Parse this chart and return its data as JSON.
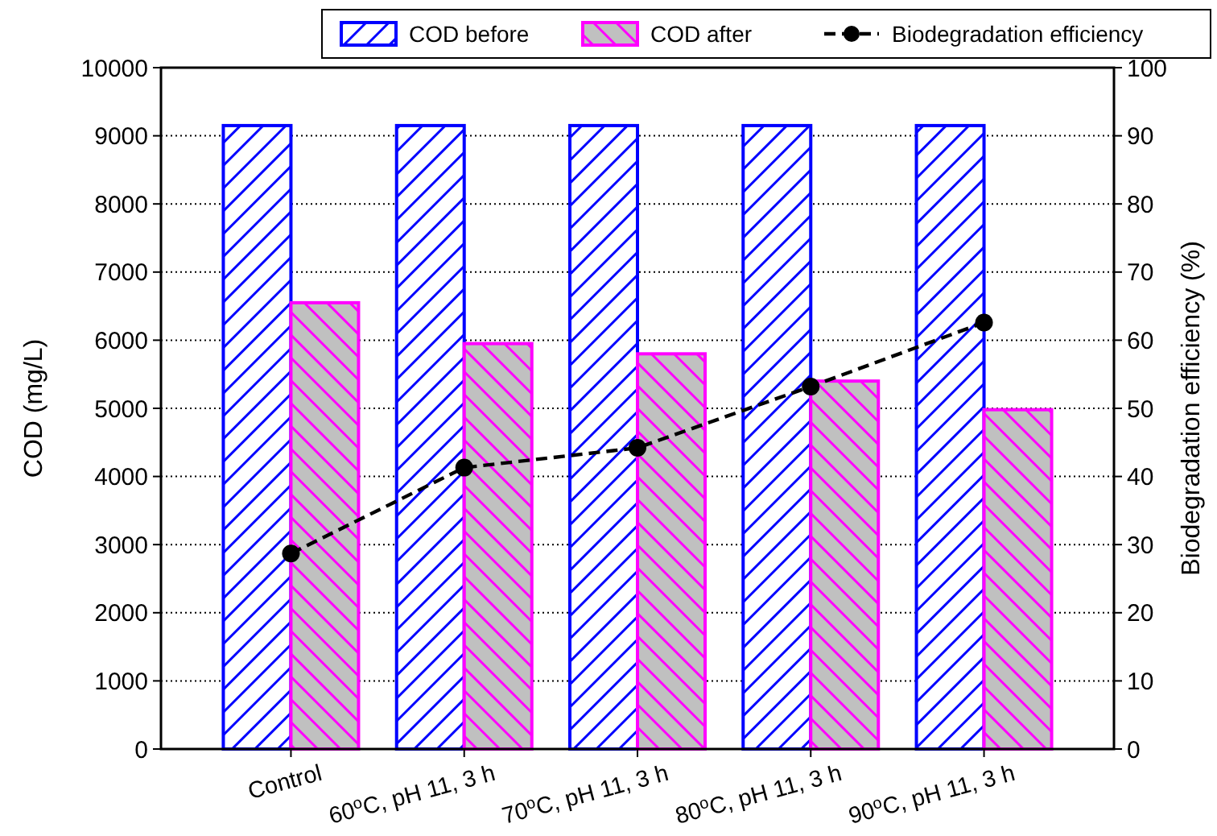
{
  "chart_data": {
    "type": "bar",
    "categories": [
      "Control",
      "60$^{o}$C, pH 11, 3 h",
      "70$^{o}$C, pH 11, 3 h",
      "80$^{o}$C, pH 11, 3 h",
      "90$^{o}$C, pH 11, 3 h"
    ],
    "ylabel": "COD (mg/L)",
    "y2label": "Biodegradation efficiency (%)",
    "ylim": [
      0,
      10000
    ],
    "yticks": [
      0,
      1000,
      2000,
      3000,
      4000,
      5000,
      6000,
      7000,
      8000,
      9000,
      10000
    ],
    "y2lim": [
      0,
      100
    ],
    "y2ticks": [
      0,
      10,
      20,
      30,
      40,
      50,
      60,
      70,
      80,
      90,
      100
    ],
    "grid": "y",
    "legend": "top",
    "series": [
      {
        "name": "COD before",
        "color": "#0000ff",
        "values": [
          9150,
          9150,
          9150,
          9150,
          9150
        ]
      },
      {
        "name": "COD after",
        "color": "#ff00ff",
        "values": [
          6550,
          5950,
          5800,
          5400,
          4980
        ]
      },
      {
        "name": "Biodegradation efficiency",
        "type": "line",
        "axis": "y2",
        "color": "#000000",
        "marker": "circle",
        "line_style": "dashed",
        "values": [
          28.7,
          41.3,
          44.2,
          53.2,
          62.6
        ]
      }
    ]
  }
}
